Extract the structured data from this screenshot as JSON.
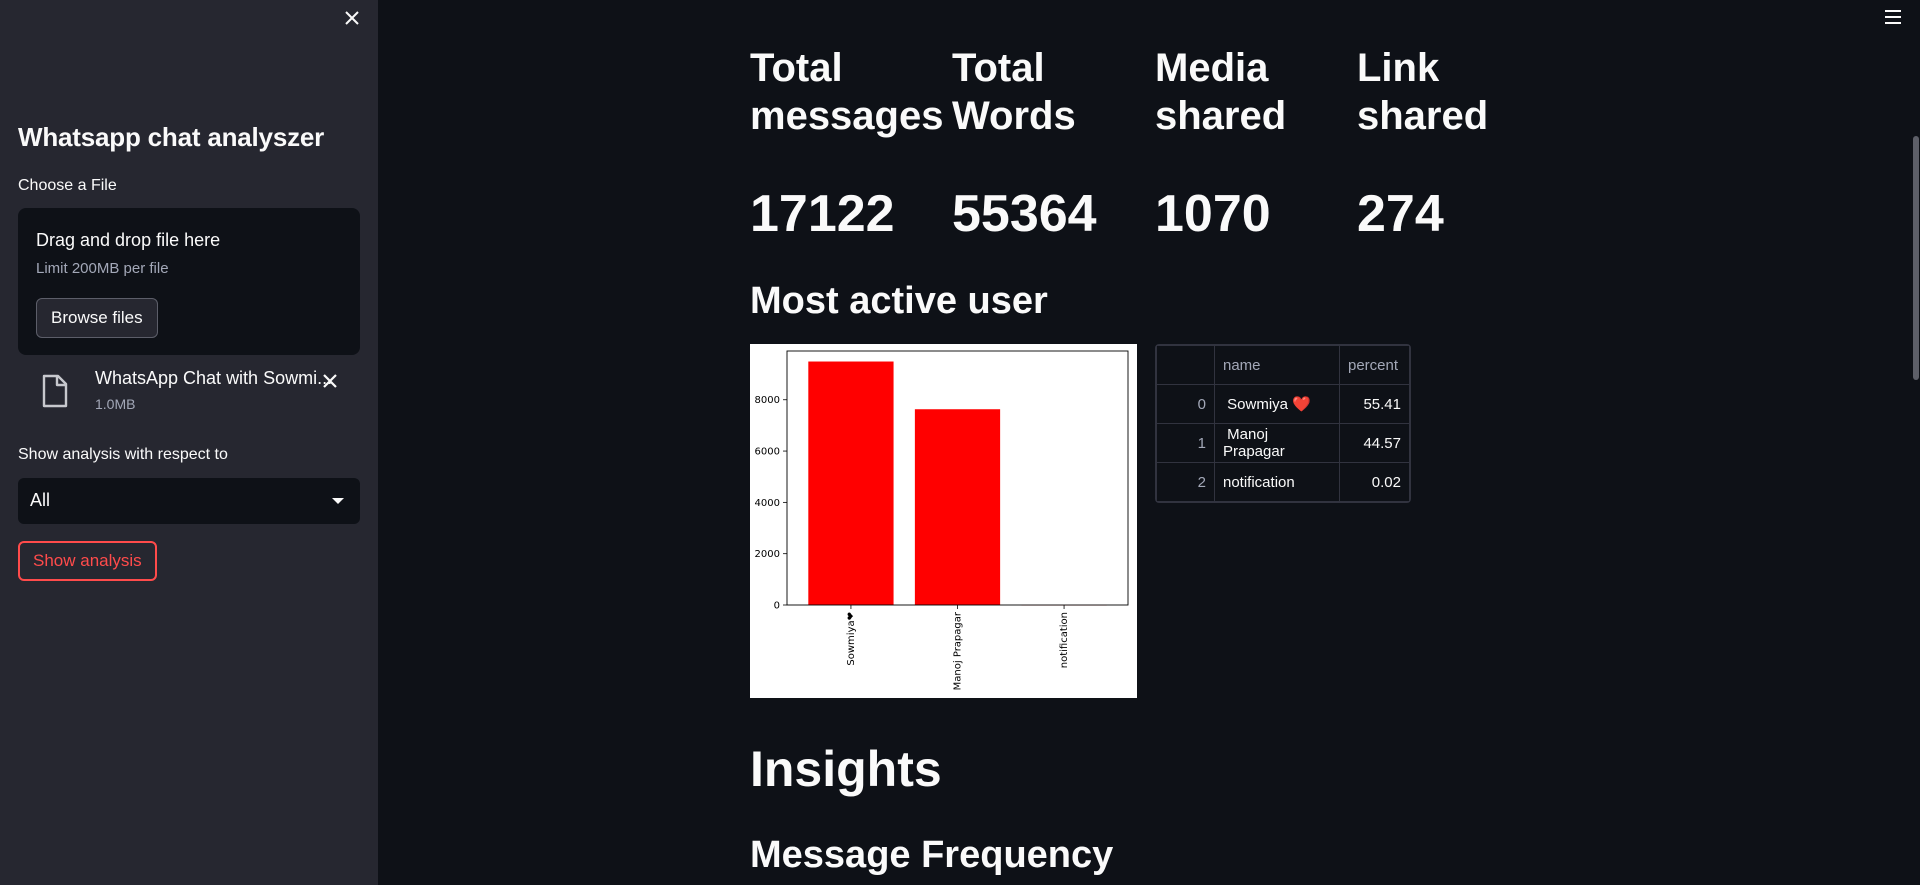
{
  "sidebar": {
    "title": "Whatsapp chat analyszer",
    "choose_file_label": "Choose a File",
    "dropzone": {
      "title": "Drag and drop file here",
      "limit": "Limit 200MB per file",
      "browse_label": "Browse files"
    },
    "uploaded_file": {
      "name": "WhatsApp Chat with Sowmi...",
      "size": "1.0MB"
    },
    "analysis_label": "Show analysis with respect to",
    "select_value": "All",
    "show_button": "Show analysis"
  },
  "metrics": [
    {
      "label": "Total messages",
      "value": "17122"
    },
    {
      "label": "Total Words",
      "value": "55364"
    },
    {
      "label": "Media shared",
      "value": "1070"
    },
    {
      "label": "Link shared",
      "value": "274"
    }
  ],
  "most_active_heading": "Most active user",
  "chart_data": {
    "type": "bar",
    "categories": [
      "Sowmiya❤",
      "Manoj Prapagar",
      "notification"
    ],
    "values": [
      9490,
      7630,
      3
    ],
    "ylim": [
      0,
      9900
    ],
    "yticks": [
      0,
      2000,
      4000,
      6000,
      8000
    ],
    "bar_color": "#ff0000",
    "grid": false
  },
  "table": {
    "columns": [
      "name",
      "percent"
    ],
    "rows": [
      {
        "index": "0",
        "name": "Sowmiya",
        "heart": "❤️",
        "percent": "55.41"
      },
      {
        "index": "1",
        "name": "Manoj Prapagar",
        "heart": "",
        "percent": "44.57"
      },
      {
        "index": "2",
        "name": "notification",
        "heart": "",
        "percent": "0.02"
      }
    ]
  },
  "insights_heading": "Insights",
  "message_frequency_heading": "Message Frequency",
  "colors": {
    "background": "#0e1117",
    "sidebar": "#262730",
    "accent": "#ff4b4b"
  }
}
